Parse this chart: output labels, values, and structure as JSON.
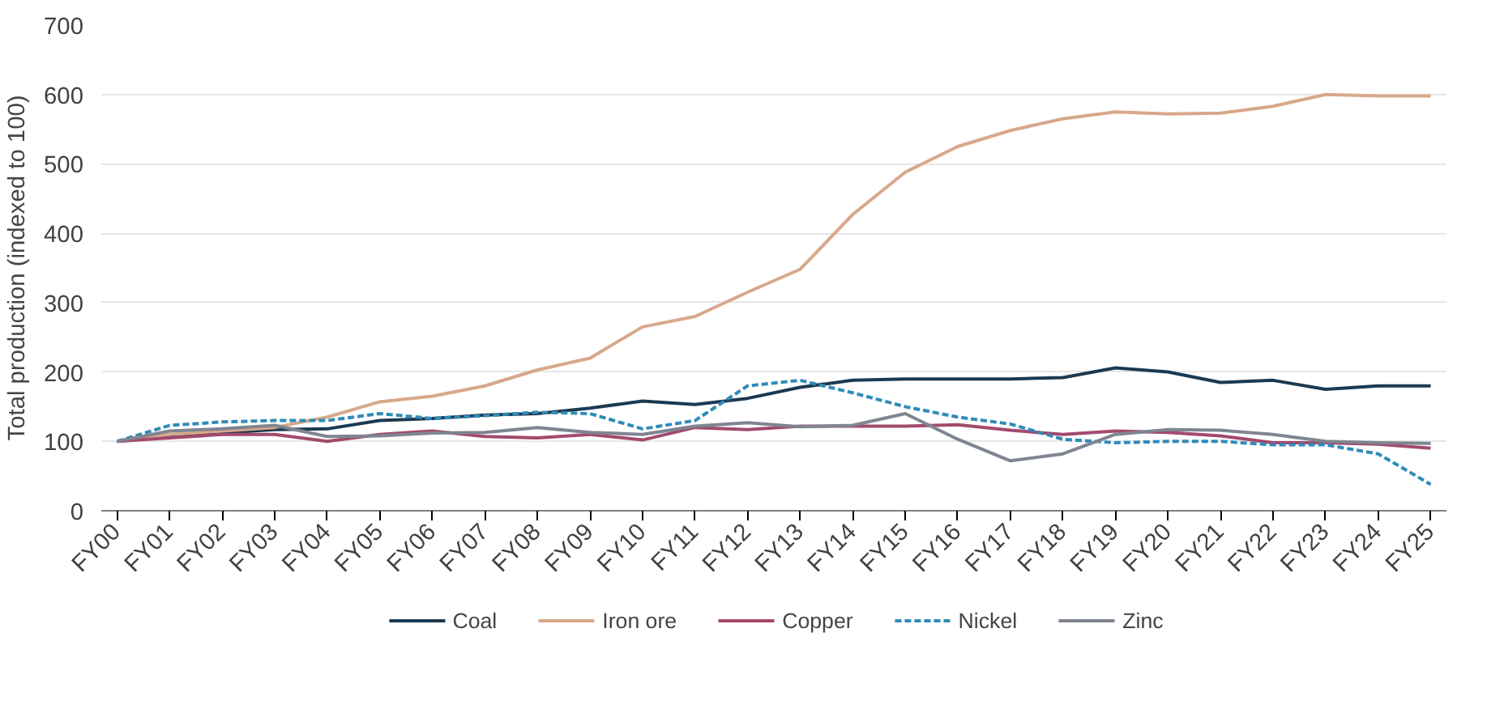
{
  "chart_data": {
    "type": "line",
    "ylabel": "Total production (indexed to 100)",
    "categories": [
      "FY00",
      "FY01",
      "FY02",
      "FY03",
      "FY04",
      "FY05",
      "FY06",
      "FY07",
      "FY08",
      "FY09",
      "FY10",
      "FY11",
      "FY12",
      "FY13",
      "FY14",
      "FY15",
      "FY16",
      "FY17",
      "FY18",
      "FY19",
      "FY20",
      "FY21",
      "FY22",
      "FY23",
      "FY24",
      "FY25"
    ],
    "ylim": [
      0,
      700
    ],
    "yticks": [
      0,
      100,
      200,
      300,
      400,
      500,
      600,
      700
    ],
    "grid": "y",
    "legend": "bottom",
    "marker": "none",
    "series": [
      {
        "name": "Coal",
        "color": "#1b3a52",
        "line_style": "solid",
        "values": [
          100,
          108,
          112,
          117,
          118,
          130,
          133,
          138,
          140,
          148,
          158,
          153,
          162,
          178,
          188,
          190,
          190,
          190,
          192,
          206,
          200,
          185,
          188,
          175,
          180,
          180
        ]
      },
      {
        "name": "Iron ore",
        "color": "#d8a88a",
        "line_style": "solid",
        "values": [
          100,
          110,
          115,
          120,
          135,
          157,
          165,
          180,
          203,
          220,
          265,
          280,
          315,
          348,
          427,
          488,
          525,
          548,
          565,
          575,
          572,
          573,
          583,
          600,
          598,
          598
        ]
      },
      {
        "name": "Copper",
        "color": "#a34a6e",
        "line_style": "solid",
        "values": [
          100,
          105,
          110,
          110,
          100,
          110,
          115,
          107,
          105,
          110,
          102,
          120,
          117,
          122,
          122,
          122,
          124,
          116,
          110,
          115,
          113,
          108,
          98,
          98,
          96,
          90
        ]
      },
      {
        "name": "Nickel",
        "color": "#2f8bb8",
        "line_style": "dashed",
        "values": [
          100,
          123,
          128,
          130,
          130,
          140,
          133,
          137,
          142,
          140,
          118,
          130,
          180,
          188,
          170,
          150,
          135,
          125,
          103,
          98,
          100,
          100,
          95,
          95,
          82,
          38
        ]
      },
      {
        "name": "Zinc",
        "color": "#7f8591",
        "line_style": "solid",
        "values": [
          100,
          115,
          118,
          123,
          107,
          108,
          112,
          113,
          120,
          113,
          110,
          122,
          127,
          121,
          123,
          140,
          103,
          72,
          82,
          110,
          117,
          116,
          110,
          100,
          98,
          97
        ]
      }
    ]
  }
}
